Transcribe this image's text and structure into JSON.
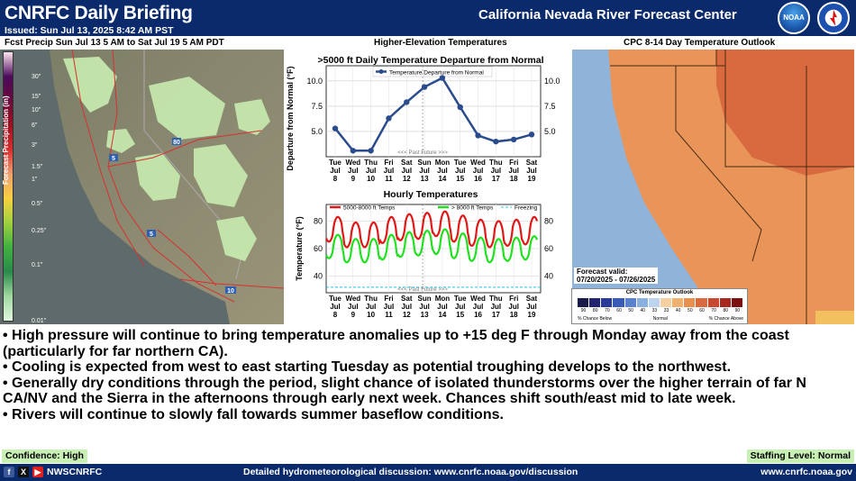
{
  "header": {
    "title": "CNRFC Daily Briefing",
    "issued": "Issued: Sun Jul 13, 2025 8:42 AM PST",
    "center_name": "California Nevada River Forecast Center",
    "noaa_text": "NOAA"
  },
  "panels": {
    "precip_title": "Fcst Precip Sun Jul 13 5 AM to Sat Jul 19 5 AM PDT",
    "temps_title": "Higher-Elevation Temperatures",
    "cpc_title": "CPC 8-14 Day Temperature Outlook"
  },
  "precip_map": {
    "legend_title": "Forecast Precipitation (in)",
    "legend_ticks": [
      "30\"",
      "15\"",
      "10\"",
      "6\"",
      "3\"",
      "1.5\"",
      "1\"",
      "0.5\"",
      "0.25\"",
      "0.1\"",
      "0.01\""
    ],
    "highway_labels": [
      "80",
      "5",
      "5",
      "10"
    ],
    "colors": [
      "#ffe4f0",
      "#4b0a5c",
      "#6a0a3c",
      "#a01020",
      "#d83030",
      "#f0a070",
      "#f8d040",
      "#9ed040",
      "#40b040",
      "#2a8a4a",
      "#a0d8a0",
      "#e0f8e0"
    ]
  },
  "cpc_map": {
    "valid_label": "Forecast valid:",
    "valid_range": "07/20/2025 - 07/26/2025",
    "legend_title": "CPC Temperature Outlook",
    "legend_numbers": [
      "90",
      "80",
      "70",
      "60",
      "50",
      "40",
      "33",
      "33",
      "40",
      "50",
      "60",
      "70",
      "80",
      "90"
    ],
    "legend_below": "% Chance Below",
    "legend_normal": "Normal",
    "legend_above": "% Chance Above",
    "colors": {
      "ocean": "#8fb3d9",
      "above_33": "#e9955a",
      "above_40": "#d96a40",
      "state_line": "#4a2a10"
    }
  },
  "chart_data": [
    {
      "type": "line",
      "title": ">5000 ft Daily Temperature Departure from Normal",
      "ylabel": "Departure from Normal (°F)",
      "xlabel": "",
      "categories": [
        "Tue Jul 8",
        "Wed Jul 9",
        "Thu Jul 10",
        "Fri Jul 11",
        "Sat Jul 12",
        "Sun Jul 13",
        "Mon Jul 14",
        "Tue Jul 15",
        "Wed Jul 16",
        "Thu Jul 17",
        "Fri Jul 18",
        "Sat Jul 19"
      ],
      "tick_days": [
        "Tue",
        "Wed",
        "Thu",
        "Fri",
        "Sat",
        "Sun",
        "Mon",
        "Tue",
        "Wed",
        "Thu",
        "Fri",
        "Sat"
      ],
      "tick_months": [
        "Jul",
        "Jul",
        "Jul",
        "Jul",
        "Jul",
        "Jul",
        "Jul",
        "Jul",
        "Jul",
        "Jul",
        "Jul",
        "Jul"
      ],
      "tick_dates": [
        "8",
        "9",
        "10",
        "11",
        "12",
        "13",
        "14",
        "15",
        "16",
        "17",
        "18",
        "19"
      ],
      "series": [
        {
          "name": "Temperature Departure from Normal",
          "values": [
            5.3,
            3.1,
            3.1,
            6.3,
            7.9,
            9.4,
            10.3,
            7.4,
            4.6,
            4.0,
            4.2,
            4.7
          ]
        }
      ],
      "ylim": [
        2.5,
        11.5
      ],
      "yticks": [
        "5.0",
        "7.5",
        "10.0"
      ],
      "past_future_label": "<<< Past Future >>>",
      "color": "#2b4c8c",
      "grid": true
    },
    {
      "type": "line",
      "title": "Hourly Temperatures",
      "ylabel": "Temperature (°F)",
      "xlabel": "",
      "tick_days": [
        "Tue",
        "Wed",
        "Thu",
        "Fri",
        "Sat",
        "Sun",
        "Mon",
        "Tue",
        "Wed",
        "Thu",
        "Fri",
        "Sat"
      ],
      "tick_months": [
        "Jul",
        "Jul",
        "Jul",
        "Jul",
        "Jul",
        "Jul",
        "Jul",
        "Jul",
        "Jul",
        "Jul",
        "Jul",
        "Jul"
      ],
      "tick_dates": [
        "8",
        "9",
        "10",
        "11",
        "12",
        "13",
        "14",
        "15",
        "16",
        "17",
        "18",
        "19"
      ],
      "series": [
        {
          "name": "5000-8000 ft Temps",
          "color": "#e01818",
          "daily_max": [
            83,
            79,
            79,
            83,
            85,
            86,
            87,
            84,
            81,
            80,
            81,
            83
          ],
          "daily_min": [
            65,
            61,
            61,
            64,
            66,
            67,
            69,
            65,
            62,
            61,
            62,
            63
          ]
        },
        {
          "name": "> 8000 ft Temps",
          "color": "#20e020",
          "daily_max": [
            70,
            67,
            67,
            70,
            72,
            73,
            74,
            71,
            68,
            67,
            68,
            69
          ],
          "daily_min": [
            53,
            50,
            50,
            52,
            54,
            55,
            56,
            53,
            51,
            50,
            51,
            52
          ]
        },
        {
          "name": "Freezing",
          "color": "#20c8e0",
          "value": 32
        }
      ],
      "ylim": [
        28,
        92
      ],
      "yticks": [
        "40",
        "60",
        "80"
      ],
      "past_future_label": "<<< Past Future >>>",
      "grid": true
    }
  ],
  "bullets": [
    "• High pressure will continue to bring temperature anomalies up to +15 deg F through Monday away from the coast (particularly for far northern CA).",
    "• Cooling is expected from west to east starting Tuesday as potential troughing develops to the northwest.",
    "• Generally dry conditions through the period, slight chance of isolated thunderstorms over the higher terrain of far N CA/NV and the Sierra in the afternoons through early next week. Chances shift south/east mid to late week.",
    "• Rivers will continue to slowly fall towards summer baseflow conditions."
  ],
  "badges": {
    "confidence": "Confidence: High",
    "staffing": "Staffing Level: Normal"
  },
  "footer": {
    "handle": "NWSCNRFC",
    "discussion": "Detailed hydrometeorological discussion: www.cnrfc.noaa.gov/discussion",
    "url": "www.cnrfc.noaa.gov",
    "social_icons": [
      "facebook-icon",
      "x-icon",
      "youtube-icon"
    ]
  }
}
